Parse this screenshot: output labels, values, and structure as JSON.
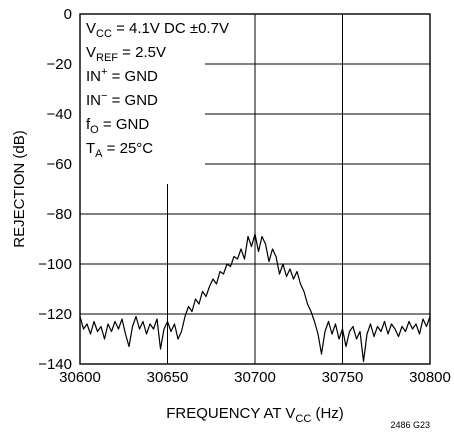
{
  "chart_data": {
    "type": "line",
    "xlabel": "FREQUENCY AT V_CC (Hz)",
    "ylabel": "REJECTION (dB)",
    "xlim": [
      30600,
      30800
    ],
    "ylim": [
      -140,
      0
    ],
    "x_ticks": [
      30600,
      30650,
      30700,
      30750,
      30800
    ],
    "y_ticks": [
      0,
      -20,
      -40,
      -60,
      -80,
      -100,
      -120,
      -140
    ],
    "x_tick_labels": [
      "30600",
      "30650",
      "30700",
      "30750",
      "30800"
    ],
    "y_tick_labels": [
      "0",
      "−20",
      "−40",
      "−60",
      "−80",
      "−100",
      "−120",
      "−140"
    ],
    "grid": true,
    "figure_id": "2486 G23",
    "conditions": [
      {
        "main": "V",
        "sub": "CC",
        "rest": " = 4.1V DC ±0.7V"
      },
      {
        "main": "V",
        "sub": "REF",
        "rest": " = 2.5V"
      },
      {
        "main": "IN",
        "sup": "+",
        "rest": " = GND"
      },
      {
        "main": "IN",
        "sup": "−",
        "rest": " = GND"
      },
      {
        "main": "f",
        "sub": "O",
        "rest": " = GND"
      },
      {
        "main": "T",
        "sub": "A",
        "rest": " = 25°C"
      }
    ],
    "series": [
      {
        "points": [
          [
            30600,
            -121
          ],
          [
            30602,
            -126
          ],
          [
            30604,
            -124
          ],
          [
            30606,
            -128
          ],
          [
            30608,
            -123
          ],
          [
            30610,
            -127
          ],
          [
            30612,
            -125
          ],
          [
            30614,
            -130
          ],
          [
            30616,
            -124
          ],
          [
            30618,
            -127
          ],
          [
            30620,
            -123
          ],
          [
            30622,
            -126
          ],
          [
            30624,
            -122
          ],
          [
            30626,
            -128
          ],
          [
            30628,
            -133
          ],
          [
            30630,
            -125
          ],
          [
            30632,
            -121
          ],
          [
            30634,
            -126
          ],
          [
            30636,
            -123
          ],
          [
            30638,
            -128
          ],
          [
            30640,
            -124
          ],
          [
            30642,
            -126
          ],
          [
            30644,
            -122
          ],
          [
            30646,
            -134
          ],
          [
            30648,
            -126
          ],
          [
            30650,
            -123
          ],
          [
            30652,
            -127
          ],
          [
            30654,
            -124
          ],
          [
            30656,
            -130
          ],
          [
            30658,
            -127
          ],
          [
            30660,
            -121
          ],
          [
            30662,
            -117
          ],
          [
            30664,
            -119
          ],
          [
            30666,
            -114
          ],
          [
            30668,
            -116
          ],
          [
            30670,
            -111
          ],
          [
            30672,
            -113
          ],
          [
            30674,
            -109
          ],
          [
            30676,
            -106
          ],
          [
            30678,
            -108
          ],
          [
            30680,
            -103
          ],
          [
            30682,
            -104
          ],
          [
            30684,
            -100
          ],
          [
            30686,
            -101
          ],
          [
            30688,
            -97
          ],
          [
            30690,
            -98
          ],
          [
            30692,
            -94
          ],
          [
            30694,
            -98
          ],
          [
            30696,
            -89
          ],
          [
            30698,
            -93
          ],
          [
            30700,
            -88
          ],
          [
            30702,
            -95
          ],
          [
            30704,
            -89
          ],
          [
            30706,
            -92
          ],
          [
            30708,
            -99
          ],
          [
            30710,
            -94
          ],
          [
            30712,
            -97
          ],
          [
            30714,
            -104
          ],
          [
            30716,
            -100
          ],
          [
            30718,
            -105
          ],
          [
            30720,
            -102
          ],
          [
            30722,
            -106
          ],
          [
            30724,
            -103
          ],
          [
            30726,
            -108
          ],
          [
            30728,
            -111
          ],
          [
            30730,
            -116
          ],
          [
            30732,
            -119
          ],
          [
            30734,
            -123
          ],
          [
            30736,
            -128
          ],
          [
            30738,
            -136
          ],
          [
            30740,
            -127
          ],
          [
            30742,
            -123
          ],
          [
            30744,
            -128
          ],
          [
            30746,
            -124
          ],
          [
            30748,
            -130
          ],
          [
            30750,
            -126
          ],
          [
            30752,
            -133
          ],
          [
            30754,
            -127
          ],
          [
            30756,
            -125
          ],
          [
            30758,
            -130
          ],
          [
            30760,
            -127
          ],
          [
            30762,
            -139
          ],
          [
            30764,
            -128
          ],
          [
            30766,
            -124
          ],
          [
            30768,
            -129
          ],
          [
            30770,
            -125
          ],
          [
            30772,
            -127
          ],
          [
            30774,
            -123
          ],
          [
            30776,
            -128
          ],
          [
            30778,
            -124
          ],
          [
            30780,
            -126
          ],
          [
            30782,
            -129
          ],
          [
            30784,
            -125
          ],
          [
            30786,
            -127
          ],
          [
            30788,
            -123
          ],
          [
            30790,
            -126
          ],
          [
            30792,
            -124
          ],
          [
            30794,
            -128
          ],
          [
            30796,
            -122
          ],
          [
            30798,
            -125
          ],
          [
            30800,
            -121
          ]
        ]
      }
    ]
  }
}
